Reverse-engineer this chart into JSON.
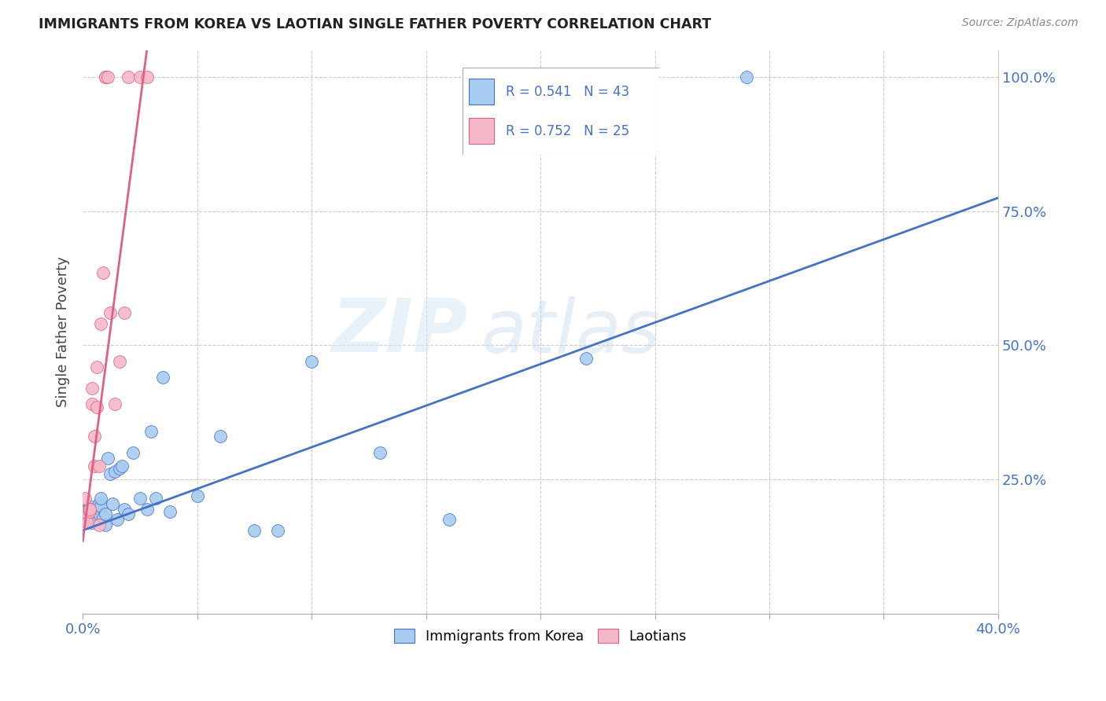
{
  "title": "IMMIGRANTS FROM KOREA VS LAOTIAN SINGLE FATHER POVERTY CORRELATION CHART",
  "source": "Source: ZipAtlas.com",
  "ylabel": "Single Father Poverty",
  "legend_label1": "Immigrants from Korea",
  "legend_label2": "Laotians",
  "R_blue": 0.541,
  "N_blue": 43,
  "R_pink": 0.752,
  "N_pink": 25,
  "xlim": [
    0.0,
    0.4
  ],
  "ylim": [
    0.0,
    1.05
  ],
  "ytick_labels": [
    "25.0%",
    "50.0%",
    "75.0%",
    "100.0%"
  ],
  "ytick_vals": [
    0.25,
    0.5,
    0.75,
    1.0
  ],
  "color_blue": "#A8CBF0",
  "color_pink": "#F5B8C8",
  "color_blue_line": "#4472C4",
  "color_pink_line": "#E06080",
  "watermark_zip": "ZIP",
  "watermark_atlas": "atlas",
  "blue_x": [
    0.001,
    0.002,
    0.002,
    0.003,
    0.003,
    0.004,
    0.004,
    0.005,
    0.005,
    0.006,
    0.006,
    0.007,
    0.007,
    0.008,
    0.008,
    0.009,
    0.01,
    0.01,
    0.011,
    0.012,
    0.013,
    0.014,
    0.015,
    0.016,
    0.017,
    0.018,
    0.02,
    0.022,
    0.025,
    0.028,
    0.03,
    0.032,
    0.035,
    0.038,
    0.05,
    0.06,
    0.075,
    0.085,
    0.1,
    0.13,
    0.16,
    0.22,
    0.29
  ],
  "blue_y": [
    0.185,
    0.195,
    0.175,
    0.2,
    0.195,
    0.17,
    0.185,
    0.175,
    0.195,
    0.175,
    0.19,
    0.185,
    0.205,
    0.2,
    0.215,
    0.18,
    0.165,
    0.185,
    0.29,
    0.26,
    0.205,
    0.265,
    0.175,
    0.27,
    0.275,
    0.195,
    0.185,
    0.3,
    0.215,
    0.195,
    0.34,
    0.215,
    0.44,
    0.19,
    0.22,
    0.33,
    0.155,
    0.155,
    0.47,
    0.3,
    0.175,
    0.475,
    1.0
  ],
  "pink_x": [
    0.001,
    0.002,
    0.002,
    0.003,
    0.003,
    0.004,
    0.004,
    0.005,
    0.005,
    0.006,
    0.006,
    0.007,
    0.007,
    0.008,
    0.009,
    0.01,
    0.01,
    0.011,
    0.012,
    0.014,
    0.016,
    0.018,
    0.02,
    0.025,
    0.028
  ],
  "pink_y": [
    0.215,
    0.185,
    0.17,
    0.19,
    0.195,
    0.39,
    0.42,
    0.275,
    0.33,
    0.385,
    0.46,
    0.275,
    0.165,
    0.54,
    0.635,
    1.0,
    1.0,
    1.0,
    0.56,
    0.39,
    0.47,
    0.56,
    1.0,
    1.0,
    1.0
  ],
  "blue_line_x0": 0.0,
  "blue_line_y0": 0.155,
  "blue_line_x1": 0.4,
  "blue_line_y1": 0.775,
  "pink_line_x0": 0.0,
  "pink_line_y0": 0.135,
  "pink_line_x1": 0.028,
  "pink_line_y1": 1.05
}
